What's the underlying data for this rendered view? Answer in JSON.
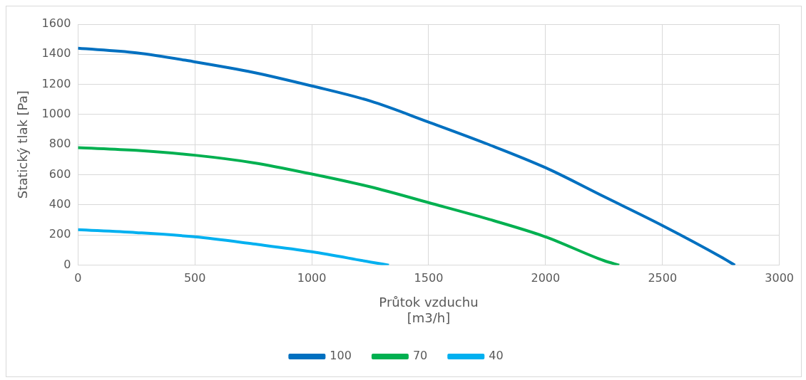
{
  "chart_data": {
    "type": "line",
    "xlabel": "Průtok vzduchu\n[m3/h]",
    "ylabel": "Statický tlak [Pa]",
    "xlim": [
      0,
      3000
    ],
    "xticks": [
      0,
      500,
      1000,
      1500,
      2000,
      2500,
      3000
    ],
    "ylim": [
      0,
      1600
    ],
    "yticks": [
      0,
      200,
      400,
      600,
      800,
      1000,
      1200,
      1400,
      1600
    ],
    "grid": true,
    "legend": "bottom",
    "marker": "none",
    "line_style": "solid",
    "series": [
      {
        "name": "100",
        "color": "#0070c0",
        "x": [
          0,
          250,
          500,
          750,
          1000,
          1250,
          1500,
          1750,
          2000,
          2250,
          2500,
          2750,
          2810
        ],
        "values": [
          1440,
          1410,
          1350,
          1280,
          1190,
          1090,
          950,
          805,
          647,
          455,
          263,
          55,
          0
        ]
      },
      {
        "name": "70",
        "color": "#00b050",
        "x": [
          0,
          250,
          500,
          750,
          1000,
          1250,
          1500,
          1750,
          2000,
          2250,
          2315
        ],
        "values": [
          780,
          762,
          730,
          680,
          605,
          520,
          415,
          308,
          188,
          30,
          0
        ]
      },
      {
        "name": "40",
        "color": "#00b0f0",
        "x": [
          0,
          250,
          500,
          750,
          1000,
          1250,
          1330
        ],
        "values": [
          236,
          216,
          188,
          141,
          89,
          21,
          0
        ]
      }
    ]
  }
}
